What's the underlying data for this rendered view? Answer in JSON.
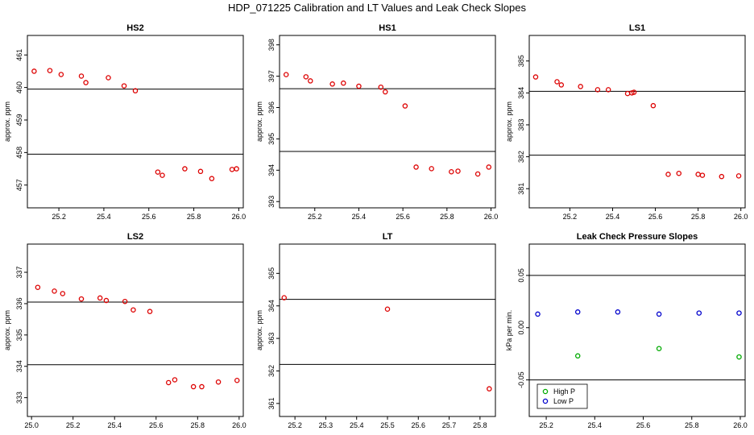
{
  "title": "HDP_071225  Calibration and LT Values and Leak Check Slopes",
  "chart_data": [
    {
      "id": "hs2",
      "type": "scatter",
      "title": "HS2",
      "ylabel": "approx. ppm",
      "xlim": [
        25.06,
        26.02
      ],
      "ylim": [
        456.3,
        461.6
      ],
      "xticks": [
        25.2,
        25.4,
        25.6,
        25.8,
        26.0
      ],
      "xtick_labels": [
        "25.2",
        "25.4",
        "25.6",
        "25.8",
        "26.0"
      ],
      "yticks": [
        457,
        458,
        459,
        460,
        461
      ],
      "ytick_labels": [
        "457",
        "458",
        "459",
        "460",
        "461"
      ],
      "hlines": [
        459.95,
        457.95
      ],
      "series": [
        {
          "color": "#dd0000",
          "x": [
            25.09,
            25.16,
            25.21,
            25.3,
            25.32,
            25.42,
            25.49,
            25.54,
            25.64,
            25.66,
            25.76,
            25.83,
            25.88,
            25.97,
            25.99
          ],
          "y": [
            460.5,
            460.52,
            460.4,
            460.35,
            460.15,
            460.3,
            460.05,
            459.9,
            457.4,
            457.3,
            457.5,
            457.42,
            457.2,
            457.48,
            457.5
          ]
        }
      ]
    },
    {
      "id": "hs1",
      "type": "scatter",
      "title": "HS1",
      "ylabel": "approx. ppm",
      "xlim": [
        25.04,
        26.02
      ],
      "ylim": [
        392.8,
        398.3
      ],
      "xticks": [
        25.2,
        25.4,
        25.6,
        25.8,
        26.0
      ],
      "xtick_labels": [
        "25.2",
        "25.4",
        "25.6",
        "25.8",
        "26.0"
      ],
      "yticks": [
        393,
        394,
        395,
        396,
        397,
        398
      ],
      "ytick_labels": [
        "393",
        "394",
        "395",
        "396",
        "397",
        "398"
      ],
      "hlines": [
        396.6,
        394.6
      ],
      "series": [
        {
          "color": "#dd0000",
          "x": [
            25.07,
            25.16,
            25.18,
            25.28,
            25.33,
            25.4,
            25.5,
            25.52,
            25.61,
            25.66,
            25.73,
            25.82,
            25.85,
            25.94,
            25.99
          ],
          "y": [
            397.05,
            396.98,
            396.85,
            396.75,
            396.78,
            396.68,
            396.65,
            396.5,
            396.05,
            394.1,
            394.05,
            393.95,
            393.97,
            393.88,
            394.1
          ]
        }
      ]
    },
    {
      "id": "ls1",
      "type": "scatter",
      "title": "LS1",
      "ylabel": "approx. ppm",
      "xlim": [
        25.01,
        26.02
      ],
      "ylim": [
        380.4,
        385.8
      ],
      "xticks": [
        25.2,
        25.4,
        25.6,
        25.8,
        26.0
      ],
      "xtick_labels": [
        "25.2",
        "25.4",
        "25.6",
        "25.8",
        "26.0"
      ],
      "yticks": [
        381,
        382,
        383,
        384,
        385
      ],
      "ytick_labels": [
        "381",
        "382",
        "383",
        "384",
        "385"
      ],
      "hlines": [
        384.05,
        382.05
      ],
      "series": [
        {
          "color": "#dd0000",
          "x": [
            25.04,
            25.14,
            25.16,
            25.25,
            25.33,
            25.38,
            25.47,
            25.49,
            25.5,
            25.59,
            25.66,
            25.71,
            25.8,
            25.82,
            25.91,
            25.99
          ],
          "y": [
            384.5,
            384.35,
            384.25,
            384.2,
            384.1,
            384.1,
            383.98,
            384.0,
            384.02,
            383.6,
            381.45,
            381.48,
            381.45,
            381.42,
            381.38,
            381.4
          ]
        }
      ]
    },
    {
      "id": "ls2",
      "type": "scatter",
      "title": "LS2",
      "ylabel": "approx. ppm",
      "xlim": [
        24.98,
        26.02
      ],
      "ylim": [
        332.4,
        337.9
      ],
      "xticks": [
        25.0,
        25.2,
        25.4,
        25.6,
        25.8,
        26.0
      ],
      "xtick_labels": [
        "25.0",
        "25.2",
        "25.4",
        "25.6",
        "25.8",
        "26.0"
      ],
      "yticks": [
        333,
        334,
        335,
        336,
        337
      ],
      "ytick_labels": [
        "333",
        "334",
        "335",
        "336",
        "337"
      ],
      "hlines": [
        336.05,
        334.05
      ],
      "series": [
        {
          "color": "#dd0000",
          "x": [
            25.03,
            25.11,
            25.15,
            25.24,
            25.33,
            25.36,
            25.45,
            25.49,
            25.57,
            25.66,
            25.69,
            25.78,
            25.82,
            25.9,
            25.99
          ],
          "y": [
            336.52,
            336.4,
            336.32,
            336.15,
            336.18,
            336.1,
            336.07,
            335.8,
            335.75,
            333.48,
            333.57,
            333.35,
            333.35,
            333.5,
            333.55
          ]
        }
      ]
    },
    {
      "id": "lt",
      "type": "scatter",
      "title": "LT",
      "ylabel": "approx. ppm",
      "xlim": [
        25.15,
        25.85
      ],
      "ylim": [
        360.6,
        365.9
      ],
      "xticks": [
        25.2,
        25.3,
        25.4,
        25.5,
        25.6,
        25.7,
        25.8
      ],
      "xtick_labels": [
        "25.2",
        "25.3",
        "25.4",
        "25.5",
        "25.6",
        "25.7",
        "25.8"
      ],
      "yticks": [
        361,
        362,
        363,
        364,
        365
      ],
      "ytick_labels": [
        "361",
        "362",
        "363",
        "364",
        "365"
      ],
      "hlines": [
        364.2,
        362.2
      ],
      "series": [
        {
          "color": "#dd0000",
          "x": [
            25.165,
            25.5,
            25.83
          ],
          "y": [
            364.25,
            363.9,
            361.45
          ]
        }
      ]
    },
    {
      "id": "leak",
      "type": "scatter",
      "title": "Leak Check Pressure Slopes",
      "ylabel": "kPa per min.",
      "xlim": [
        25.13,
        26.02
      ],
      "ylim": [
        -0.085,
        0.08
      ],
      "xticks": [
        25.2,
        25.4,
        25.6,
        25.8,
        26.0
      ],
      "xtick_labels": [
        "25.2",
        "25.4",
        "25.6",
        "25.8",
        "26.0"
      ],
      "yticks": [
        -0.05,
        0.0,
        0.05
      ],
      "ytick_labels": [
        "-0.05",
        "0.00",
        "0.05"
      ],
      "hlines": [
        0.05,
        -0.05
      ],
      "legend": {
        "position": "bottom-left",
        "entries": [
          "High P",
          "Low P"
        ]
      },
      "series": [
        {
          "name": "High P",
          "color": "#00aa00",
          "x": [
            25.33,
            25.665,
            25.995
          ],
          "y": [
            -0.027,
            -0.02,
            -0.028
          ]
        },
        {
          "name": "Low P",
          "color": "#0000cc",
          "x": [
            25.165,
            25.33,
            25.495,
            25.665,
            25.83,
            25.995
          ],
          "y": [
            0.013,
            0.015,
            0.015,
            0.013,
            0.014,
            0.014
          ]
        }
      ]
    }
  ]
}
